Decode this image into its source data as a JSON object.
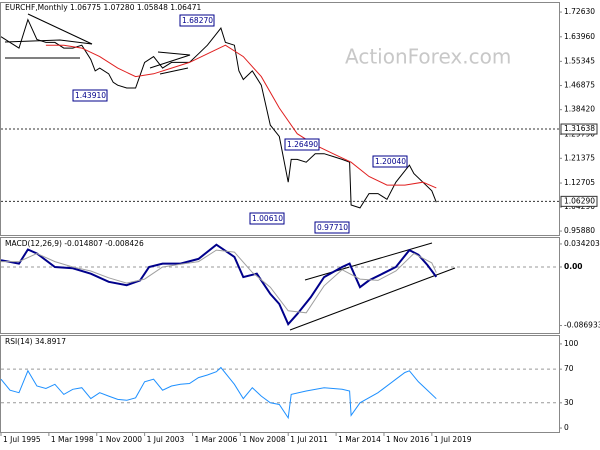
{
  "chart_data": [
    {
      "type": "line",
      "title": "EURCHF,Monthly  1.06775 1.07280 1.05848 1.06471",
      "watermark": "ActionForex.com",
      "xlim": [
        "1995-07",
        "2026-08"
      ],
      "ylim": [
        0.945,
        1.758
      ],
      "yticks": [
        {
          "value": 1.7263,
          "label": "1.72630"
        },
        {
          "value": 1.6396,
          "label": "1.63960"
        },
        1.55345,
        1.46875,
        {
          "value": 1.3842,
          "label": "1.38420"
        },
        {
          "value": 1.2979,
          "label": "1.29790"
        },
        1.21375,
        1.12705,
        {
          "value": 1.0429,
          "label": "1.04290"
        },
        {
          "value": 0.9588,
          "label": "0.95880"
        }
      ],
      "hlines": [
        {
          "value": 1.31638,
          "label": "1.31638"
        },
        {
          "value": 1.0629,
          "label": "1.06290"
        }
      ],
      "annotations": [
        {
          "value": 1.6827,
          "label": "1.68270"
        },
        {
          "value": 1.4391,
          "label": "1.43910"
        },
        {
          "value": 1.2649,
          "label": "1.26490"
        },
        {
          "value": 1.2004,
          "label": "1.20040"
        },
        {
          "value": 1.0061,
          "label": "1.00610"
        },
        {
          "value": 0.9771,
          "label": "0.97710"
        }
      ],
      "series": [
        {
          "color": "#000000",
          "x": [
            "1995-07",
            "1996-01",
            "1996-07",
            "1997-01",
            "1997-07",
            "1998-01",
            "1998-07",
            "1999-01",
            "1999-07",
            "2000-01",
            "2000-07",
            "2000-10",
            "2001-01",
            "2001-07",
            "2001-10",
            "2002-01",
            "2002-07",
            "2003-01",
            "2003-07",
            "2004-01",
            "2004-07",
            "2005-01",
            "2005-07",
            "2006-01",
            "2006-07",
            "2007-01",
            "2007-07",
            "2007-10",
            "2008-01",
            "2008-07",
            "2008-10",
            "2009-01",
            "2009-07",
            "2010-01",
            "2010-07",
            "2011-01",
            "2011-07",
            "2011-09",
            "2012-01",
            "2012-07",
            "2013-01",
            "2013-07",
            "2014-01",
            "2014-07",
            "2014-12",
            "2015-01",
            "2015-07",
            "2016-01",
            "2016-07",
            "2017-01",
            "2017-07",
            "2018-01",
            "2018-04",
            "2018-07",
            "2019-01",
            "2019-07",
            "2019-10"
          ],
          "values": [
            1.64,
            1.62,
            1.6,
            1.7,
            1.63,
            1.62,
            1.62,
            1.6,
            1.6,
            1.61,
            1.56,
            1.52,
            1.53,
            1.51,
            1.48,
            1.47,
            1.46,
            1.46,
            1.55,
            1.57,
            1.53,
            1.55,
            1.55,
            1.55,
            1.58,
            1.61,
            1.65,
            1.67,
            1.62,
            1.61,
            1.52,
            1.49,
            1.52,
            1.47,
            1.33,
            1.29,
            1.13,
            1.21,
            1.21,
            1.2,
            1.23,
            1.23,
            1.22,
            1.21,
            1.2,
            1.05,
            1.04,
            1.09,
            1.09,
            1.07,
            1.13,
            1.17,
            1.19,
            1.16,
            1.13,
            1.1,
            1.06
          ]
        },
        {
          "color": "#e02020",
          "x": [
            "1998-01",
            "1999-01",
            "2000-01",
            "2001-01",
            "2002-01",
            "2003-01",
            "2004-01",
            "2005-01",
            "2006-01",
            "2007-01",
            "2008-01",
            "2009-01",
            "2010-01",
            "2011-01",
            "2012-01",
            "2013-01",
            "2014-01",
            "2015-01",
            "2016-01",
            "2017-01",
            "2018-01",
            "2019-01",
            "2019-10"
          ],
          "values": [
            1.61,
            1.61,
            1.6,
            1.57,
            1.53,
            1.5,
            1.51,
            1.53,
            1.55,
            1.58,
            1.61,
            1.57,
            1.5,
            1.39,
            1.3,
            1.26,
            1.23,
            1.2,
            1.15,
            1.12,
            1.12,
            1.13,
            1.11
          ]
        }
      ]
    },
    {
      "type": "line",
      "title": "MACD(12,26,9) -0.014807 -0.008426",
      "ylim": [
        -0.098,
        0.043
      ],
      "yticks": [
        0.034203,
        {
          "value": 0,
          "label": "0.00"
        },
        -0.086933
      ],
      "levels": [
        0
      ],
      "series": [
        {
          "color": "#00008b",
          "x": [
            "1995-07",
            "1996-07",
            "1997-01",
            "1997-07",
            "1998-07",
            "1999-07",
            "2000-07",
            "2001-07",
            "2002-07",
            "2003-04",
            "2003-10",
            "2004-07",
            "2005-07",
            "2006-07",
            "2007-07",
            "2008-07",
            "2009-01",
            "2009-10",
            "2010-07",
            "2011-01",
            "2011-07",
            "2012-01",
            "2012-10",
            "2013-07",
            "2014-07",
            "2014-12",
            "2015-07",
            "2016-01",
            "2016-10",
            "2017-07",
            "2018-04",
            "2018-10",
            "2019-04",
            "2019-10"
          ],
          "values": [
            0.01,
            0.005,
            0.026,
            0.02,
            0.0,
            -0.002,
            -0.01,
            -0.022,
            -0.027,
            -0.02,
            0.0,
            0.005,
            0.005,
            0.012,
            0.033,
            0.015,
            -0.015,
            -0.01,
            -0.04,
            -0.055,
            -0.085,
            -0.07,
            -0.045,
            -0.015,
            0.0,
            0.005,
            -0.03,
            -0.02,
            -0.01,
            0.0,
            0.025,
            0.018,
            0.003,
            -0.0148
          ]
        },
        {
          "color": "#a0a0a0",
          "x": [
            "1995-07",
            "1996-07",
            "1997-07",
            "1998-07",
            "1999-07",
            "2000-07",
            "2001-07",
            "2002-07",
            "2003-07",
            "2004-07",
            "2005-07",
            "2006-07",
            "2007-07",
            "2008-07",
            "2009-07",
            "2010-07",
            "2011-07",
            "2012-07",
            "2013-07",
            "2014-07",
            "2015-07",
            "2016-07",
            "2017-07",
            "2018-07",
            "2019-07",
            "2019-10"
          ],
          "values": [
            0.008,
            0.008,
            0.02,
            0.008,
            0.0,
            -0.006,
            -0.016,
            -0.024,
            -0.018,
            0.0,
            0.004,
            0.008,
            0.025,
            0.022,
            -0.008,
            -0.03,
            -0.065,
            -0.068,
            -0.028,
            -0.004,
            -0.018,
            -0.02,
            -0.006,
            0.02,
            0.006,
            -0.0084
          ]
        }
      ]
    },
    {
      "type": "line",
      "title": "RSI(14) 34.8917",
      "ylim": [
        -4.7,
        109.4
      ],
      "yticks": [
        100,
        70,
        30,
        0
      ],
      "levels": [
        70,
        30
      ],
      "xticks": [
        {
          "value": "1995-07",
          "label": "1 Jul 1995"
        },
        {
          "value": "1998-03",
          "label": "1 Mar 1998"
        },
        {
          "value": "2000-11",
          "label": "1 Nov 2000"
        },
        {
          "value": "2003-07",
          "label": "1 Jul 2003"
        },
        {
          "value": "2006-03",
          "label": "1 Mar 2006"
        },
        {
          "value": "2008-11",
          "label": "1 Nov 2008"
        },
        {
          "value": "2011-07",
          "label": "1 Jul 2011"
        },
        {
          "value": "2014-03",
          "label": "1 Mar 2014"
        },
        {
          "value": "2016-11",
          "label": "1 Nov 2016"
        },
        {
          "value": "2019-07",
          "label": "1 Jul 2019"
        }
      ],
      "series": [
        {
          "color": "#1e90ff",
          "x": [
            "1995-07",
            "1996-01",
            "1996-07",
            "1997-01",
            "1997-07",
            "1998-01",
            "1998-07",
            "1999-01",
            "1999-07",
            "2000-01",
            "2000-07",
            "2001-01",
            "2001-07",
            "2002-01",
            "2002-07",
            "2003-01",
            "2003-07",
            "2004-01",
            "2004-07",
            "2005-01",
            "2005-07",
            "2006-01",
            "2006-07",
            "2007-01",
            "2007-07",
            "2007-10",
            "2008-07",
            "2009-01",
            "2009-07",
            "2010-01",
            "2010-07",
            "2011-01",
            "2011-07",
            "2011-09",
            "2012-07",
            "2013-07",
            "2014-07",
            "2014-12",
            "2015-01",
            "2015-07",
            "2016-07",
            "2017-07",
            "2018-01",
            "2018-04",
            "2018-10",
            "2019-04",
            "2019-10"
          ],
          "values": [
            58,
            45,
            42,
            68,
            50,
            47,
            52,
            40,
            46,
            48,
            35,
            42,
            38,
            34,
            33,
            36,
            55,
            58,
            45,
            50,
            52,
            53,
            60,
            63,
            67,
            72,
            52,
            35,
            48,
            38,
            30,
            28,
            12,
            40,
            44,
            48,
            46,
            44,
            15,
            30,
            42,
            58,
            66,
            68,
            55,
            45,
            34.9
          ]
        }
      ]
    }
  ]
}
